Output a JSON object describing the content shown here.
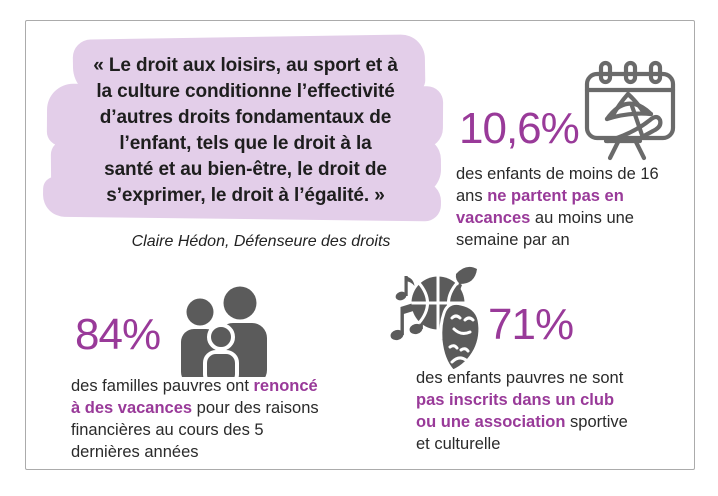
{
  "theme": {
    "accent_purple": "#993a99",
    "highlight_lavender": "#e3cee9",
    "icon_gray": "#5b5b5b",
    "text_dark": "#2a2a2a",
    "card_border": "#ababab"
  },
  "quote": {
    "text": "« Le droit aux loisirs, au sport et à la culture conditionne l’effectivité d’autres droits fondamentaux de l’enfant, tels que le droit à la santé et au bien-être, le droit de s’exprimer, le droit à l’égalité. »",
    "lines": [
      "« Le droit aux loisirs, au sport et à",
      "la culture conditionne l’effectivité",
      "d’autres droits fondamentaux de",
      "l’enfant, tels que le droit à la",
      "santé et au bien-être, le droit de",
      "s’exprimer, le droit à l’égalité. »"
    ],
    "attribution": "Claire Hédon, Défenseure des droits"
  },
  "stats": {
    "vacations_children": {
      "value": "10,6%",
      "icon": "calendar-vacation-icon",
      "segments": [
        {
          "text": "des enfants de moins de 16 ans ",
          "em": false
        },
        {
          "text": "ne partent pas en vacances",
          "em": true
        },
        {
          "text": " au moins une semaine par an",
          "em": false
        }
      ]
    },
    "families_renounce": {
      "value": "84%",
      "icon": "family-icon",
      "segments": [
        {
          "text": "des familles pauvres ont ",
          "em": false
        },
        {
          "text": "renoncé à des vacances",
          "em": true
        },
        {
          "text": " pour des raisons financières au cours des 5 dernières années",
          "em": false
        }
      ]
    },
    "club_registration": {
      "value": "71%",
      "icon": "leisure-culture-icon",
      "segments": [
        {
          "text": "des enfants pauvres ne sont ",
          "em": false
        },
        {
          "text": "pas inscrits dans un club ou une association",
          "em": true
        },
        {
          "text": " sportive et culturelle",
          "em": false
        }
      ]
    }
  }
}
